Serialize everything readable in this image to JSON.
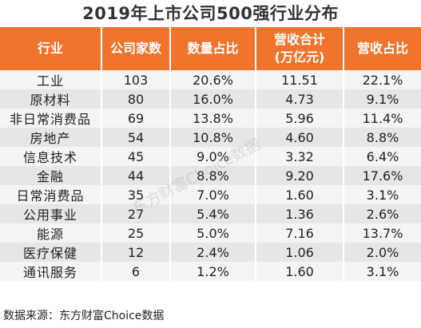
{
  "title": "2019年上市公司500强行业分布",
  "headers": [
    "行业",
    "公司家数",
    "数量占比",
    "营收合计\n(万亿元)",
    "营收占比"
  ],
  "rows": [
    [
      "工业",
      "103",
      "20.6%",
      "11.51",
      "22.1%"
    ],
    [
      "原材料",
      "80",
      "16.0%",
      "4.73",
      "9.1%"
    ],
    [
      "非日常消费品",
      "69",
      "13.8%",
      "5.96",
      "11.4%"
    ],
    [
      "房地产",
      "54",
      "10.8%",
      "4.60",
      "8.8%"
    ],
    [
      "信息技术",
      "45",
      "9.0%",
      "3.32",
      "6.4%"
    ],
    [
      "金融",
      "44",
      "8.8%",
      "9.20",
      "17.6%"
    ],
    [
      "日常消费品",
      "35",
      "7.0%",
      "1.60",
      "3.1%"
    ],
    [
      "公用事业",
      "27",
      "5.4%",
      "1.36",
      "2.6%"
    ],
    [
      "能源",
      "25",
      "5.0%",
      "7.16",
      "13.7%"
    ],
    [
      "医疗保健",
      "12",
      "2.4%",
      "1.06",
      "2.0%"
    ],
    [
      "通讯服务",
      "6",
      "1.2%",
      "1.60",
      "3.1%"
    ]
  ],
  "source": "数据来源：东方财富Choice数据",
  "watermark": "东方财富Choice数据",
  "colors": {
    "header_bg": "#f0742b",
    "row_light": "#f4f4f4",
    "row_dark": "#e6e6e6"
  }
}
